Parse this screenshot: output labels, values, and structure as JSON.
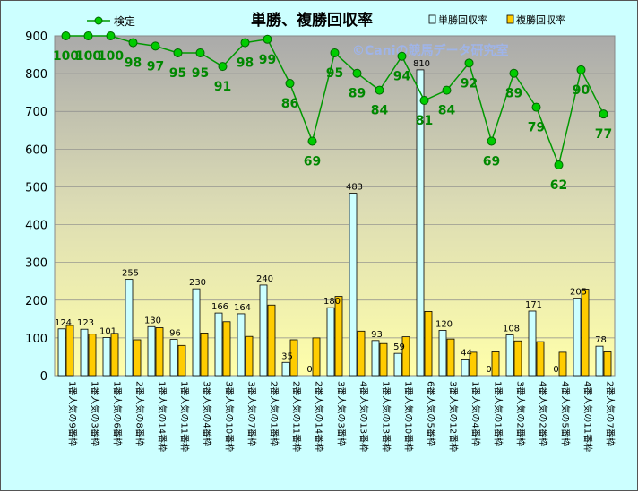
{
  "chart_data": {
    "type": "bar",
    "title": "単勝、複勝回収率",
    "watermark": "©Caniの競馬データ研究室",
    "ylim": [
      0,
      900
    ],
    "yticks": [
      0,
      100,
      200,
      300,
      400,
      500,
      600,
      700,
      800,
      900
    ],
    "legend_placement": "top",
    "categories": [
      "1番人気の9番枠",
      "1番人気の3番枠",
      "1番人気の6番枠",
      "2番人気の8番枠",
      "1番人気の14番枠",
      "1番人気の11番枠",
      "3番人気の4番枠",
      "3番人気の10番枠",
      "3番人気の7番枠",
      "2番人気の1番枠",
      "2番人気の11番枠",
      "2番人気の14番枠",
      "3番人気の3番枠",
      "4番人気の13番枠",
      "1番人気の13番枠",
      "1番人気の10番枠",
      "6番人気の5番枠",
      "3番人気の12番枠",
      "1番人気の4番枠",
      "1番人気の1番枠",
      "3番人気の2番枠",
      "4番人気の2番枠",
      "4番人気の5番枠",
      "4番人気の11番枠",
      "2番人気の7番枠"
    ],
    "series": [
      {
        "name": "単勝回収率",
        "color": "#ccffff",
        "values": [
          124,
          123,
          101,
          255,
          130,
          96,
          230,
          166,
          164,
          240,
          35,
          0,
          180,
          483,
          93,
          59,
          810,
          120,
          44,
          0,
          108,
          171,
          0,
          205,
          78
        ],
        "labels": [
          "124",
          "123",
          "101",
          "255",
          "130",
          "96",
          "230",
          "166",
          "164",
          "240",
          "35",
          "0",
          "180",
          "483",
          "93",
          "59",
          "810",
          "120",
          "44",
          "0",
          "108",
          "171",
          "0",
          "205",
          "78"
        ]
      },
      {
        "name": "複勝回収率",
        "color": "#ffcc00",
        "values": [
          133,
          110,
          112,
          95,
          127,
          80,
          113,
          143,
          104,
          187,
          95,
          100,
          210,
          118,
          85,
          103,
          170,
          97,
          62,
          63,
          92,
          90,
          62,
          229,
          63
        ]
      },
      {
        "name": "検定",
        "type": "line",
        "color": "#009900",
        "values": [
          100,
          100,
          100,
          98,
          97,
          95,
          95,
          91,
          98,
          99,
          86,
          69,
          95,
          89,
          84,
          94,
          81,
          84,
          92,
          69,
          89,
          79,
          62,
          90,
          77
        ],
        "labels": [
          "100",
          "100",
          "100",
          "98",
          "97",
          "95",
          "95",
          "91",
          "98",
          "99",
          "86",
          "69",
          "95",
          "89",
          "84",
          "94",
          "81",
          "84",
          "92",
          "69",
          "89",
          "79",
          "62",
          "90",
          "77"
        ],
        "scale": "×9 on left axis"
      }
    ]
  }
}
